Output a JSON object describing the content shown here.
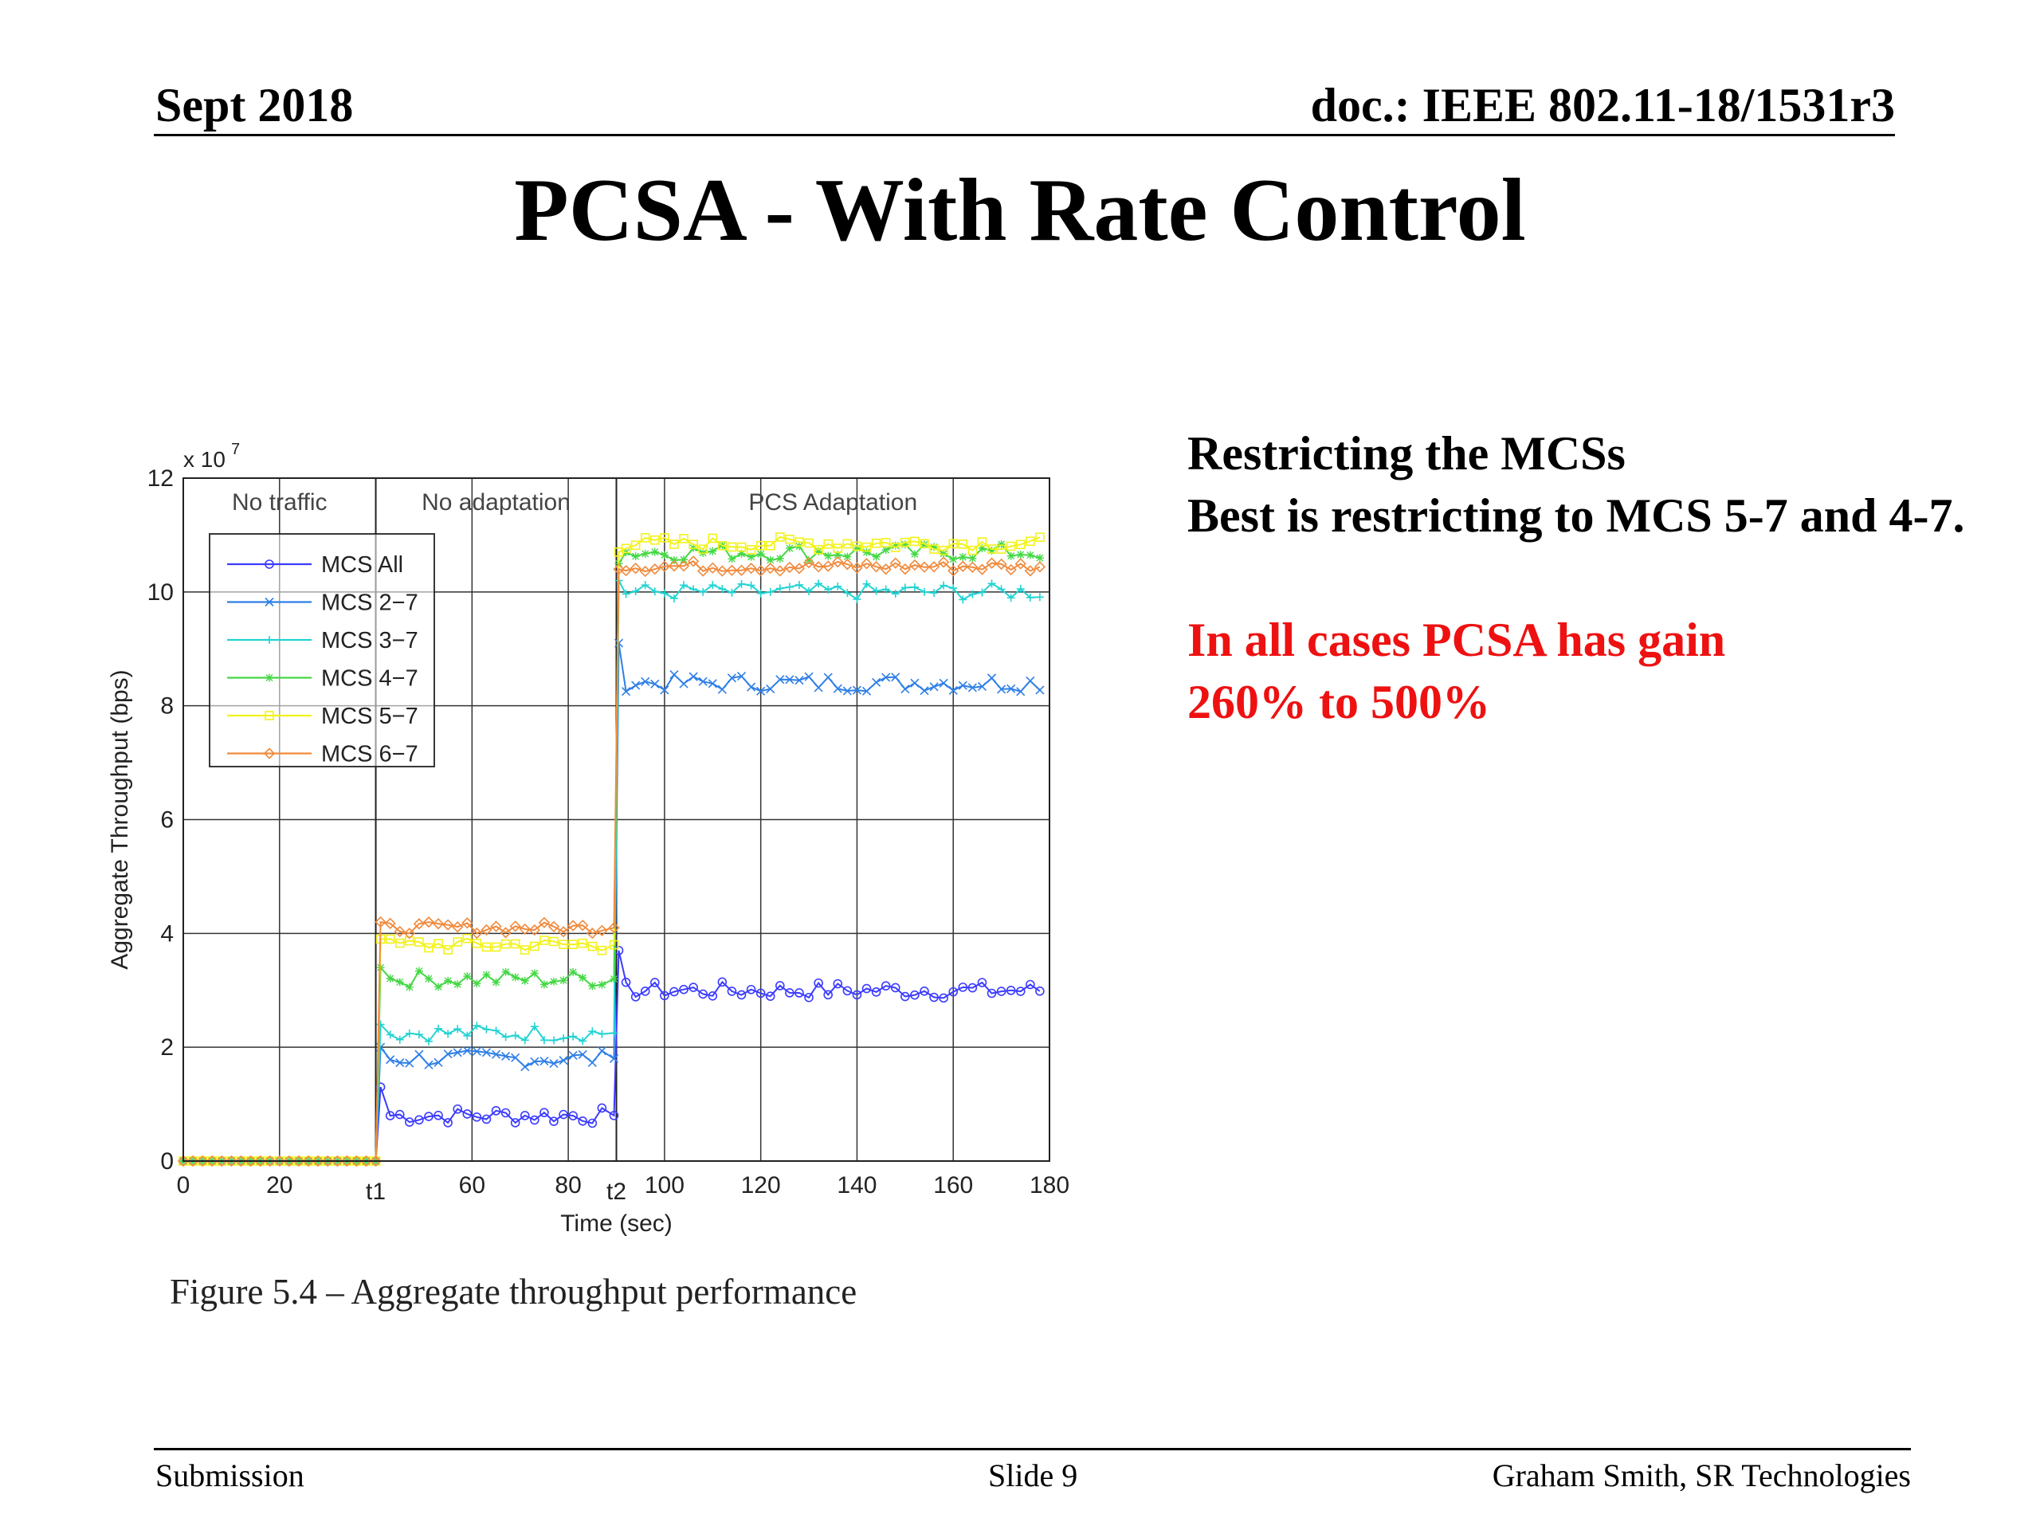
{
  "header": {
    "date": "Sept 2018",
    "doc": "doc.: IEEE 802.11-18/1531r3"
  },
  "slide_title": "PCSA - With Rate Control",
  "text": {
    "line1": "Restricting the MCSs",
    "line2": "Best is restricting to MCS 5-7 and 4-7.",
    "red1": "In all cases PCSA has gain",
    "red2": "260% to 500%"
  },
  "caption": "Figure 5.4 – Aggregate throughput performance",
  "footer": {
    "left": "Submission",
    "center": "Slide 9",
    "right": "Graham Smith, SR Technologies"
  },
  "colors": {
    "red_text": "#ee1111"
  },
  "chart_data": {
    "type": "line",
    "xlabel": "Time (sec)",
    "ylabel": "Aggregate Throughput (bps)",
    "scale_label": "x 10",
    "scale_exp": "7",
    "xlim": [
      0,
      180
    ],
    "ylim": [
      0,
      12
    ],
    "x_ticks": [
      {
        "v": 0,
        "label": "0"
      },
      {
        "v": 20,
        "label": "20"
      },
      {
        "v": 40,
        "label": "t1"
      },
      {
        "v": 60,
        "label": "60"
      },
      {
        "v": 80,
        "label": "80"
      },
      {
        "v": 90,
        "label": "t2"
      },
      {
        "v": 100,
        "label": "100"
      },
      {
        "v": 120,
        "label": "120"
      },
      {
        "v": 140,
        "label": "140"
      },
      {
        "v": 160,
        "label": "160"
      },
      {
        "v": 180,
        "label": "180"
      }
    ],
    "y_ticks": [
      0,
      2,
      4,
      6,
      8,
      10,
      12
    ],
    "grid": true,
    "legend": "upper-left",
    "phases": [
      {
        "label": "No traffic",
        "x": 20
      },
      {
        "label": "No adaptation",
        "x": 65
      },
      {
        "label": "PCS Adaptation",
        "x": 135
      }
    ],
    "phase_boundaries": [
      40,
      90
    ],
    "series": [
      {
        "name": "MCS All",
        "color": "#3b3bff",
        "marker": "o",
        "pre": 0,
        "no_adapt": 0.8,
        "pcs": 3.0,
        "jitter": 0.15,
        "start_no": 1.3,
        "start_pcs": 3.7
      },
      {
        "name": "MCS 2−7",
        "color": "#2e7fe6",
        "marker": "x",
        "pre": 0,
        "no_adapt": 1.8,
        "pcs": 8.4,
        "jitter": 0.15,
        "start_no": 2.0,
        "start_pcs": 9.1
      },
      {
        "name": "MCS 3−7",
        "color": "#22d3d3",
        "marker": "+",
        "pre": 0,
        "no_adapt": 2.25,
        "pcs": 10.0,
        "jitter": 0.15,
        "start_no": 2.4,
        "start_pcs": 10.2
      },
      {
        "name": "MCS 4−7",
        "color": "#45d845",
        "marker": "*",
        "pre": 0,
        "no_adapt": 3.2,
        "pcs": 10.7,
        "jitter": 0.15,
        "start_no": 3.4,
        "start_pcs": 10.5
      },
      {
        "name": "MCS 5−7",
        "color": "#f2f21a",
        "marker": "s",
        "pre": 0,
        "no_adapt": 3.8,
        "pcs": 10.85,
        "jitter": 0.12,
        "start_no": 3.9,
        "start_pcs": 10.7
      },
      {
        "name": "MCS 6−7",
        "color": "#f08a3c",
        "marker": "d",
        "pre": 0,
        "no_adapt": 4.1,
        "pcs": 10.45,
        "jitter": 0.1,
        "start_no": 4.2,
        "start_pcs": 10.4
      }
    ]
  }
}
